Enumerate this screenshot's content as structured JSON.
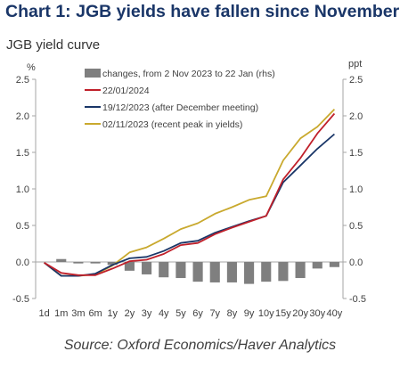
{
  "title": "Chart 1: JGB yields have fallen since November",
  "subtitle": "JGB yield curve",
  "source": "Source: Oxford Economics/Haver Analytics",
  "chart_data": {
    "type": "line",
    "categories": [
      "1d",
      "1m",
      "3m",
      "6m",
      "1y",
      "2y",
      "3y",
      "4y",
      "5y",
      "6y",
      "7y",
      "8y",
      "9y",
      "10y",
      "15y",
      "20y",
      "30y",
      "40y"
    ],
    "y_left": {
      "label": "%",
      "ylim": [
        -0.5,
        2.5
      ],
      "ticks": [
        "-0.5",
        "0.0",
        "0.5",
        "1.0",
        "1.5",
        "2.0",
        "2.5"
      ]
    },
    "y_right": {
      "label": "ppt",
      "ylim": [
        -0.5,
        2.5
      ],
      "ticks": [
        "-0.5",
        "0.0",
        "0.5",
        "1.0",
        "1.5",
        "2.0",
        "2.5"
      ]
    },
    "grid": false,
    "legend_position": "top-left",
    "series": [
      {
        "name": "changes, from 2 Nov 2023 to 22 Jan (rhs)",
        "type": "bar",
        "axis": "right",
        "color": "#7f7f7f",
        "values": [
          0.0,
          0.04,
          -0.02,
          -0.02,
          -0.04,
          -0.12,
          -0.17,
          -0.21,
          -0.22,
          -0.27,
          -0.28,
          -0.28,
          -0.3,
          -0.27,
          -0.26,
          -0.22,
          -0.09,
          -0.07
        ]
      },
      {
        "name": "22/01/2024",
        "type": "line",
        "axis": "left",
        "color": "#c0202a",
        "values": [
          -0.01,
          -0.15,
          -0.18,
          -0.18,
          -0.09,
          0.01,
          0.03,
          0.11,
          0.23,
          0.26,
          0.38,
          0.47,
          0.55,
          0.63,
          1.13,
          1.42,
          1.76,
          2.03
        ]
      },
      {
        "name": "19/12/2023 (after December meeting)",
        "type": "line",
        "axis": "left",
        "color": "#1a3668",
        "values": [
          -0.01,
          -0.19,
          -0.19,
          -0.16,
          -0.04,
          0.05,
          0.07,
          0.15,
          0.26,
          0.29,
          0.4,
          0.48,
          0.56,
          0.63,
          1.09,
          1.32,
          1.55,
          1.75
        ]
      },
      {
        "name": "02/11/2023 (recent peak in yields)",
        "type": "line",
        "axis": "left",
        "color": "#c9a92e",
        "values": [
          -0.01,
          -0.19,
          -0.19,
          -0.17,
          -0.05,
          0.13,
          0.2,
          0.32,
          0.45,
          0.53,
          0.66,
          0.75,
          0.85,
          0.9,
          1.39,
          1.69,
          1.85,
          2.09
        ]
      }
    ]
  }
}
